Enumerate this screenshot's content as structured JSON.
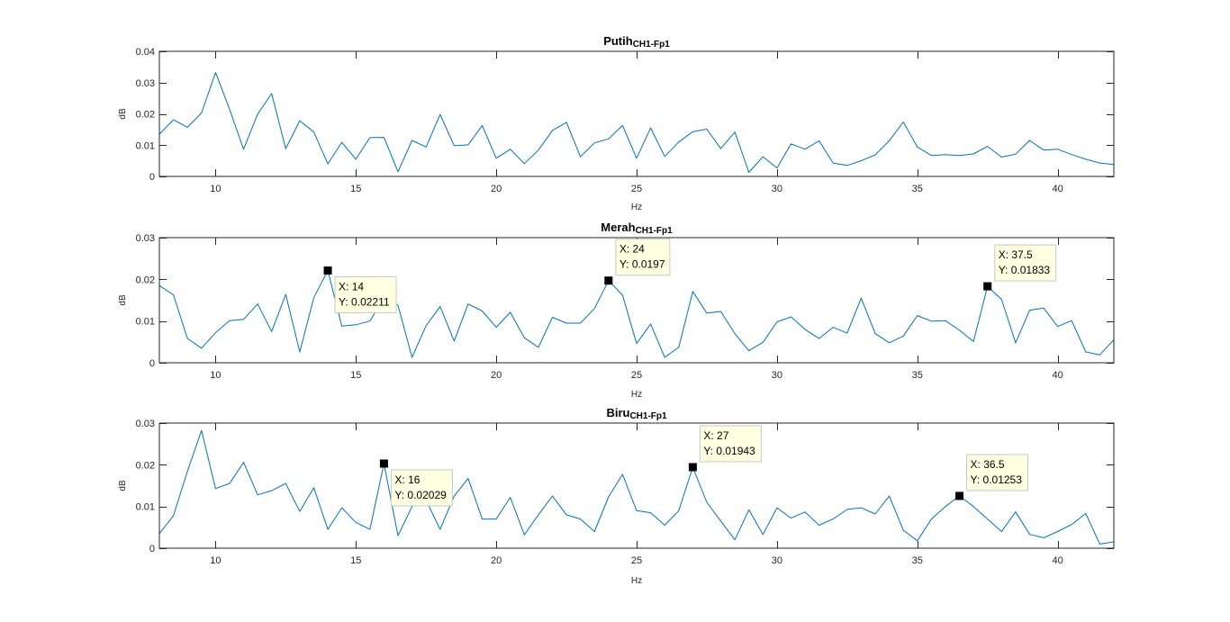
{
  "colors": {
    "line": "#0072BD",
    "axis": "#262626",
    "tip_fill": "#ffffe1",
    "marker": "#000000"
  },
  "chart_data": [
    {
      "type": "line",
      "title": "Putih",
      "title_sub": "CH1-Fp1",
      "xlabel": "Hz",
      "ylabel": "dB",
      "xlim": [
        8,
        42
      ],
      "ylim": [
        0,
        0.04
      ],
      "xticks": [
        10,
        15,
        20,
        25,
        30,
        35,
        40
      ],
      "yticks": [
        0,
        0.01,
        0.02,
        0.03,
        0.04
      ],
      "ytick_labels": [
        "0",
        "0.01",
        "0.02",
        "0.03",
        "0.04"
      ],
      "grid": false,
      "x": [
        8,
        8.5,
        9,
        9.5,
        10,
        10.5,
        11,
        11.5,
        12,
        12.5,
        13,
        13.5,
        14,
        14.5,
        15,
        15.5,
        16,
        16.5,
        17,
        17.5,
        18,
        18.5,
        19,
        19.5,
        20,
        20.5,
        21,
        21.5,
        22,
        22.5,
        23,
        23.5,
        24,
        24.5,
        25,
        25.5,
        26,
        26.5,
        27,
        27.5,
        28,
        28.5,
        29,
        29.5,
        30,
        30.5,
        31,
        31.5,
        32,
        32.5,
        33,
        33.5,
        34,
        34.5,
        35,
        35.5,
        36,
        36.5,
        37,
        37.5,
        38,
        38.5,
        39,
        39.5,
        40,
        40.5,
        41,
        41.5,
        42
      ],
      "y": [
        0.0135,
        0.0181,
        0.0157,
        0.0203,
        0.0332,
        0.0215,
        0.0087,
        0.0199,
        0.0265,
        0.0089,
        0.0178,
        0.0142,
        0.004,
        0.0109,
        0.0055,
        0.0124,
        0.0125,
        0.0015,
        0.0115,
        0.0094,
        0.0198,
        0.0098,
        0.0101,
        0.0163,
        0.0058,
        0.0087,
        0.0041,
        0.0084,
        0.0147,
        0.0173,
        0.0063,
        0.0107,
        0.012,
        0.0163,
        0.0058,
        0.0155,
        0.0064,
        0.011,
        0.0143,
        0.0151,
        0.0089,
        0.0142,
        0.0013,
        0.0063,
        0.0027,
        0.0104,
        0.0087,
        0.0114,
        0.0043,
        0.0035,
        0.005,
        0.0069,
        0.0114,
        0.0174,
        0.0094,
        0.0067,
        0.007,
        0.0067,
        0.0072,
        0.0096,
        0.0062,
        0.0071,
        0.0115,
        0.0084,
        0.0087,
        0.007,
        0.0055,
        0.0043,
        0.0038
      ],
      "datatips": []
    },
    {
      "type": "line",
      "title": "Merah",
      "title_sub": "CH1-Fp1",
      "xlabel": "Hz",
      "ylabel": "dB",
      "xlim": [
        8,
        42
      ],
      "ylim": [
        0,
        0.03
      ],
      "xticks": [
        10,
        15,
        20,
        25,
        30,
        35,
        40
      ],
      "yticks": [
        0,
        0.01,
        0.02,
        0.03
      ],
      "ytick_labels": [
        "0",
        "0.01",
        "0.02",
        "0.03"
      ],
      "grid": false,
      "x": [
        8,
        8.5,
        9,
        9.5,
        10,
        10.5,
        11,
        11.5,
        12,
        12.5,
        13,
        13.5,
        14,
        14.5,
        15,
        15.5,
        16,
        16.5,
        17,
        17.5,
        18,
        18.5,
        19,
        19.5,
        20,
        20.5,
        21,
        21.5,
        22,
        22.5,
        23,
        23.5,
        24,
        24.5,
        25,
        25.5,
        26,
        26.5,
        27,
        27.5,
        28,
        28.5,
        29,
        29.5,
        30,
        30.5,
        31,
        31.5,
        32,
        32.5,
        33,
        33.5,
        34,
        34.5,
        35,
        35.5,
        36,
        36.5,
        37,
        37.5,
        38,
        38.5,
        39,
        39.5,
        40,
        40.5,
        41,
        41.5,
        42
      ],
      "y": [
        0.0185,
        0.0163,
        0.0058,
        0.0035,
        0.0072,
        0.0101,
        0.0104,
        0.0141,
        0.0075,
        0.0164,
        0.0026,
        0.0156,
        0.02211,
        0.0088,
        0.0091,
        0.01,
        0.0155,
        0.0138,
        0.0013,
        0.0089,
        0.0135,
        0.0052,
        0.0141,
        0.0124,
        0.0085,
        0.0121,
        0.006,
        0.0037,
        0.0109,
        0.0095,
        0.0095,
        0.013,
        0.0197,
        0.0162,
        0.0046,
        0.0093,
        0.0013,
        0.0037,
        0.0171,
        0.0119,
        0.0123,
        0.007,
        0.0029,
        0.0049,
        0.0098,
        0.011,
        0.008,
        0.0058,
        0.0085,
        0.0071,
        0.0155,
        0.007,
        0.0048,
        0.0064,
        0.0113,
        0.01,
        0.0101,
        0.0078,
        0.0051,
        0.01833,
        0.0152,
        0.0048,
        0.0126,
        0.0131,
        0.0087,
        0.0101,
        0.0026,
        0.0019,
        0.0055
      ],
      "datatips": [
        {
          "x": 14,
          "y": 0.02211,
          "x_text": "X: 14",
          "y_text": "Y: 0.02211"
        },
        {
          "x": 24,
          "y": 0.0197,
          "x_text": "X: 24",
          "y_text": "Y: 0.0197"
        },
        {
          "x": 37.5,
          "y": 0.01833,
          "x_text": "X: 37.5",
          "y_text": "Y: 0.01833"
        }
      ]
    },
    {
      "type": "line",
      "title": "Biru",
      "title_sub": "CH1-Fp1",
      "xlabel": "Hz",
      "ylabel": "dB",
      "xlim": [
        8,
        42
      ],
      "ylim": [
        0,
        0.03
      ],
      "xticks": [
        10,
        15,
        20,
        25,
        30,
        35,
        40
      ],
      "yticks": [
        0,
        0.01,
        0.02,
        0.03
      ],
      "ytick_labels": [
        "0",
        "0.01",
        "0.02",
        "0.03"
      ],
      "grid": false,
      "x": [
        8,
        8.5,
        9,
        9.5,
        10,
        10.5,
        11,
        11.5,
        12,
        12.5,
        13,
        13.5,
        14,
        14.5,
        15,
        15.5,
        16,
        16.5,
        17,
        17.5,
        18,
        18.5,
        19,
        19.5,
        20,
        20.5,
        21,
        21.5,
        22,
        22.5,
        23,
        23.5,
        24,
        24.5,
        25,
        25.5,
        26,
        26.5,
        27,
        27.5,
        28,
        28.5,
        29,
        29.5,
        30,
        30.5,
        31,
        31.5,
        32,
        32.5,
        33,
        33.5,
        34,
        34.5,
        35,
        35.5,
        36,
        36.5,
        37,
        37.5,
        38,
        38.5,
        39,
        39.5,
        40,
        40.5,
        41,
        41.5,
        42
      ],
      "y": [
        0.0035,
        0.0078,
        0.0185,
        0.0282,
        0.0143,
        0.0155,
        0.0206,
        0.0128,
        0.0138,
        0.0155,
        0.0088,
        0.0145,
        0.0045,
        0.0097,
        0.0062,
        0.0045,
        0.02029,
        0.003,
        0.01,
        0.0115,
        0.0045,
        0.0125,
        0.0167,
        0.007,
        0.007,
        0.0122,
        0.0032,
        0.008,
        0.0125,
        0.008,
        0.007,
        0.004,
        0.0123,
        0.0177,
        0.009,
        0.0085,
        0.0055,
        0.009,
        0.01943,
        0.011,
        0.0065,
        0.002,
        0.0092,
        0.0033,
        0.0097,
        0.0072,
        0.0087,
        0.0055,
        0.007,
        0.0093,
        0.0097,
        0.0082,
        0.0125,
        0.0043,
        0.0018,
        0.007,
        0.01,
        0.01253,
        0.01,
        0.007,
        0.004,
        0.0087,
        0.0033,
        0.0025,
        0.004,
        0.0057,
        0.0083,
        0.001,
        0.0015
      ],
      "datatips": [
        {
          "x": 16,
          "y": 0.02029,
          "x_text": "X: 16",
          "y_text": "Y: 0.02029"
        },
        {
          "x": 27,
          "y": 0.01943,
          "x_text": "X: 27",
          "y_text": "Y: 0.01943"
        },
        {
          "x": 36.5,
          "y": 0.01253,
          "x_text": "X: 36.5",
          "y_text": "Y: 0.01253"
        }
      ]
    }
  ]
}
